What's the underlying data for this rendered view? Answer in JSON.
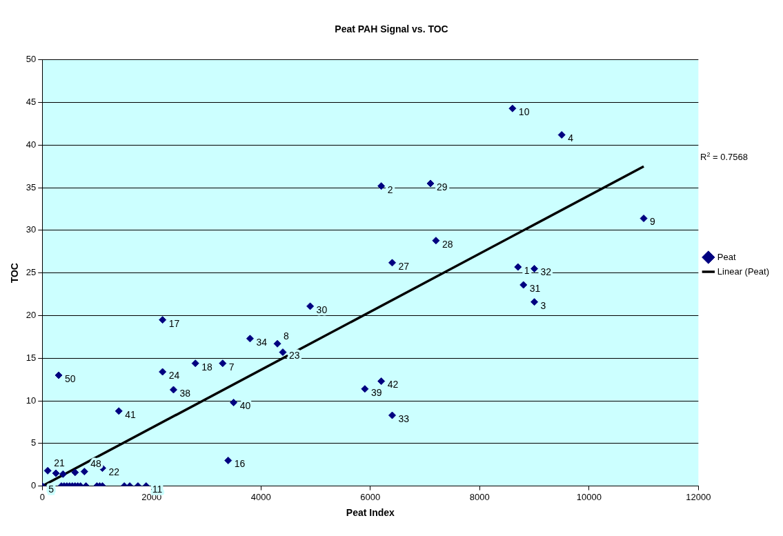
{
  "chart_data": {
    "type": "scatter",
    "title": "Peat PAH Signal vs. TOC",
    "xlabel": "Peat Index",
    "ylabel": "TOC",
    "xlim": [
      0,
      12000
    ],
    "xticks": [
      0,
      2000,
      4000,
      6000,
      8000,
      10000,
      12000
    ],
    "ylim": [
      0,
      50
    ],
    "yticks": [
      0,
      5,
      10,
      15,
      20,
      25,
      30,
      35,
      40,
      45,
      50
    ],
    "grid": "y",
    "legend": "right",
    "marker": "diamond",
    "annotations": [
      "R$^{2}$ = 0.7568",
      {
        "text": "10",
        "x": 8600,
        "y": 44.3
      },
      {
        "text": "4",
        "x": 9500,
        "y": 41.2
      },
      {
        "text": "2",
        "x": 6200,
        "y": 35.2
      },
      {
        "text": "29",
        "x": 7100,
        "y": 35.5
      },
      {
        "text": "9",
        "x": 11000,
        "y": 31.4
      },
      {
        "text": "28",
        "x": 7200,
        "y": 28.8
      },
      {
        "text": "27",
        "x": 6400,
        "y": 26.2
      },
      {
        "text": "1",
        "x": 8700,
        "y": 25.7
      },
      {
        "text": "32",
        "x": 9000,
        "y": 25.5
      },
      {
        "text": "31",
        "x": 8800,
        "y": 23.6
      },
      {
        "text": "3",
        "x": 9000,
        "y": 21.6
      },
      {
        "text": "30",
        "x": 4900,
        "y": 21.1
      },
      {
        "text": "17",
        "x": 2200,
        "y": 19.5
      },
      {
        "text": "34",
        "x": 3800,
        "y": 17.3
      },
      {
        "text": "8",
        "x": 4300,
        "y": 16.7
      },
      {
        "text": "23",
        "x": 4400,
        "y": 15.7
      },
      {
        "text": "18",
        "x": 2800,
        "y": 14.4
      },
      {
        "text": "7",
        "x": 3300,
        "y": 14.4
      },
      {
        "text": "24",
        "x": 2200,
        "y": 13.4
      },
      {
        "text": "50",
        "x": 300,
        "y": 13
      },
      {
        "text": "38",
        "x": 2400,
        "y": 11.3
      },
      {
        "text": "42",
        "x": 6200,
        "y": 12.3
      },
      {
        "text": "39",
        "x": 5900,
        "y": 11.4
      },
      {
        "text": "40",
        "x": 3500,
        "y": 9.8
      },
      {
        "text": "41",
        "x": 1400,
        "y": 8.8
      },
      {
        "text": "33",
        "x": 6400,
        "y": 8.3
      },
      {
        "text": "16",
        "x": 3400,
        "y": 3
      },
      {
        "text": "22",
        "x": 1100,
        "y": 2.1
      },
      {
        "text": "21",
        "x": 100,
        "y": 1.8
      },
      {
        "text": "48",
        "x": 770,
        "y": 1.7
      },
      {
        "text": "5",
        "x": 0,
        "y": 0
      },
      {
        "text": "11",
        "x": 1900,
        "y": 0
      }
    ],
    "series": [
      {
        "name": "Peat",
        "color": "#000080",
        "x": [
          8600,
          9500,
          6200,
          7100,
          11000,
          7200,
          6400,
          8700,
          9000,
          8800,
          9000,
          4900,
          2200,
          3800,
          4300,
          4400,
          2800,
          3300,
          2200,
          300,
          2400,
          6200,
          5900,
          3500,
          1400,
          6400,
          3400,
          1100,
          100,
          250,
          380,
          600,
          770,
          0,
          350,
          400,
          450,
          500,
          550,
          600,
          650,
          700,
          800,
          1000,
          1050,
          1100,
          1500,
          1600,
          1750,
          1900
        ],
        "values": [
          44.3,
          41.2,
          35.2,
          35.5,
          31.4,
          28.8,
          26.2,
          25.7,
          25.5,
          23.6,
          21.6,
          21.1,
          19.5,
          17.3,
          16.7,
          15.7,
          14.4,
          14.4,
          13.4,
          13,
          11.3,
          12.3,
          11.4,
          9.8,
          8.8,
          8.3,
          3,
          2.1,
          1.8,
          1.5,
          1.4,
          1.6,
          1.7,
          0,
          0,
          0,
          0,
          0,
          0,
          0,
          0,
          0,
          0,
          0,
          0,
          0,
          0,
          0,
          0,
          0
        ]
      },
      {
        "name": "Linear (Peat)",
        "type": "line",
        "color": "#000000",
        "line_style": "solid",
        "marker": "none",
        "x": [
          0,
          11000
        ],
        "values": [
          0,
          37.5
        ]
      }
    ]
  }
}
